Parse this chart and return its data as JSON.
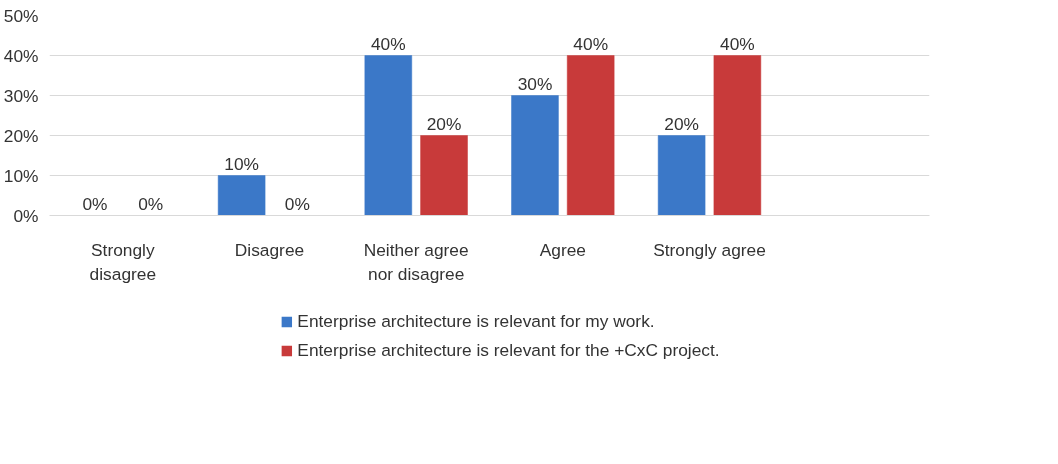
{
  "chart_data": {
    "type": "bar",
    "categories": [
      "Strongly\ndisagree",
      "Disagree",
      "Neither agree\nnor disagree",
      "Agree",
      "Strongly agree",
      null
    ],
    "series": [
      {
        "name": "Enterprise architecture is relevant for my work.",
        "color": "#3b78c8",
        "values": [
          0,
          10,
          40,
          30,
          20,
          null
        ],
        "value_labels": [
          "0%",
          "10%",
          "40%",
          "30%",
          "20%",
          null
        ]
      },
      {
        "name": "Enterprise architecture is relevant for the +CxC project.",
        "color": "#c83a3a",
        "values": [
          0,
          0,
          20,
          40,
          40,
          null
        ],
        "value_labels": [
          "0%",
          "0%",
          "20%",
          "40%",
          "40%",
          null
        ]
      }
    ],
    "ylim": [
      0,
      50
    ],
    "yticks": [
      {
        "value": 0,
        "label": "0%"
      },
      {
        "value": 10,
        "label": "10%"
      },
      {
        "value": 20,
        "label": "20%"
      },
      {
        "value": 30,
        "label": "30%"
      },
      {
        "value": 40,
        "label": "40%"
      },
      {
        "value": 50,
        "label": "50%"
      }
    ],
    "grid": "y",
    "legend": "bottom"
  }
}
